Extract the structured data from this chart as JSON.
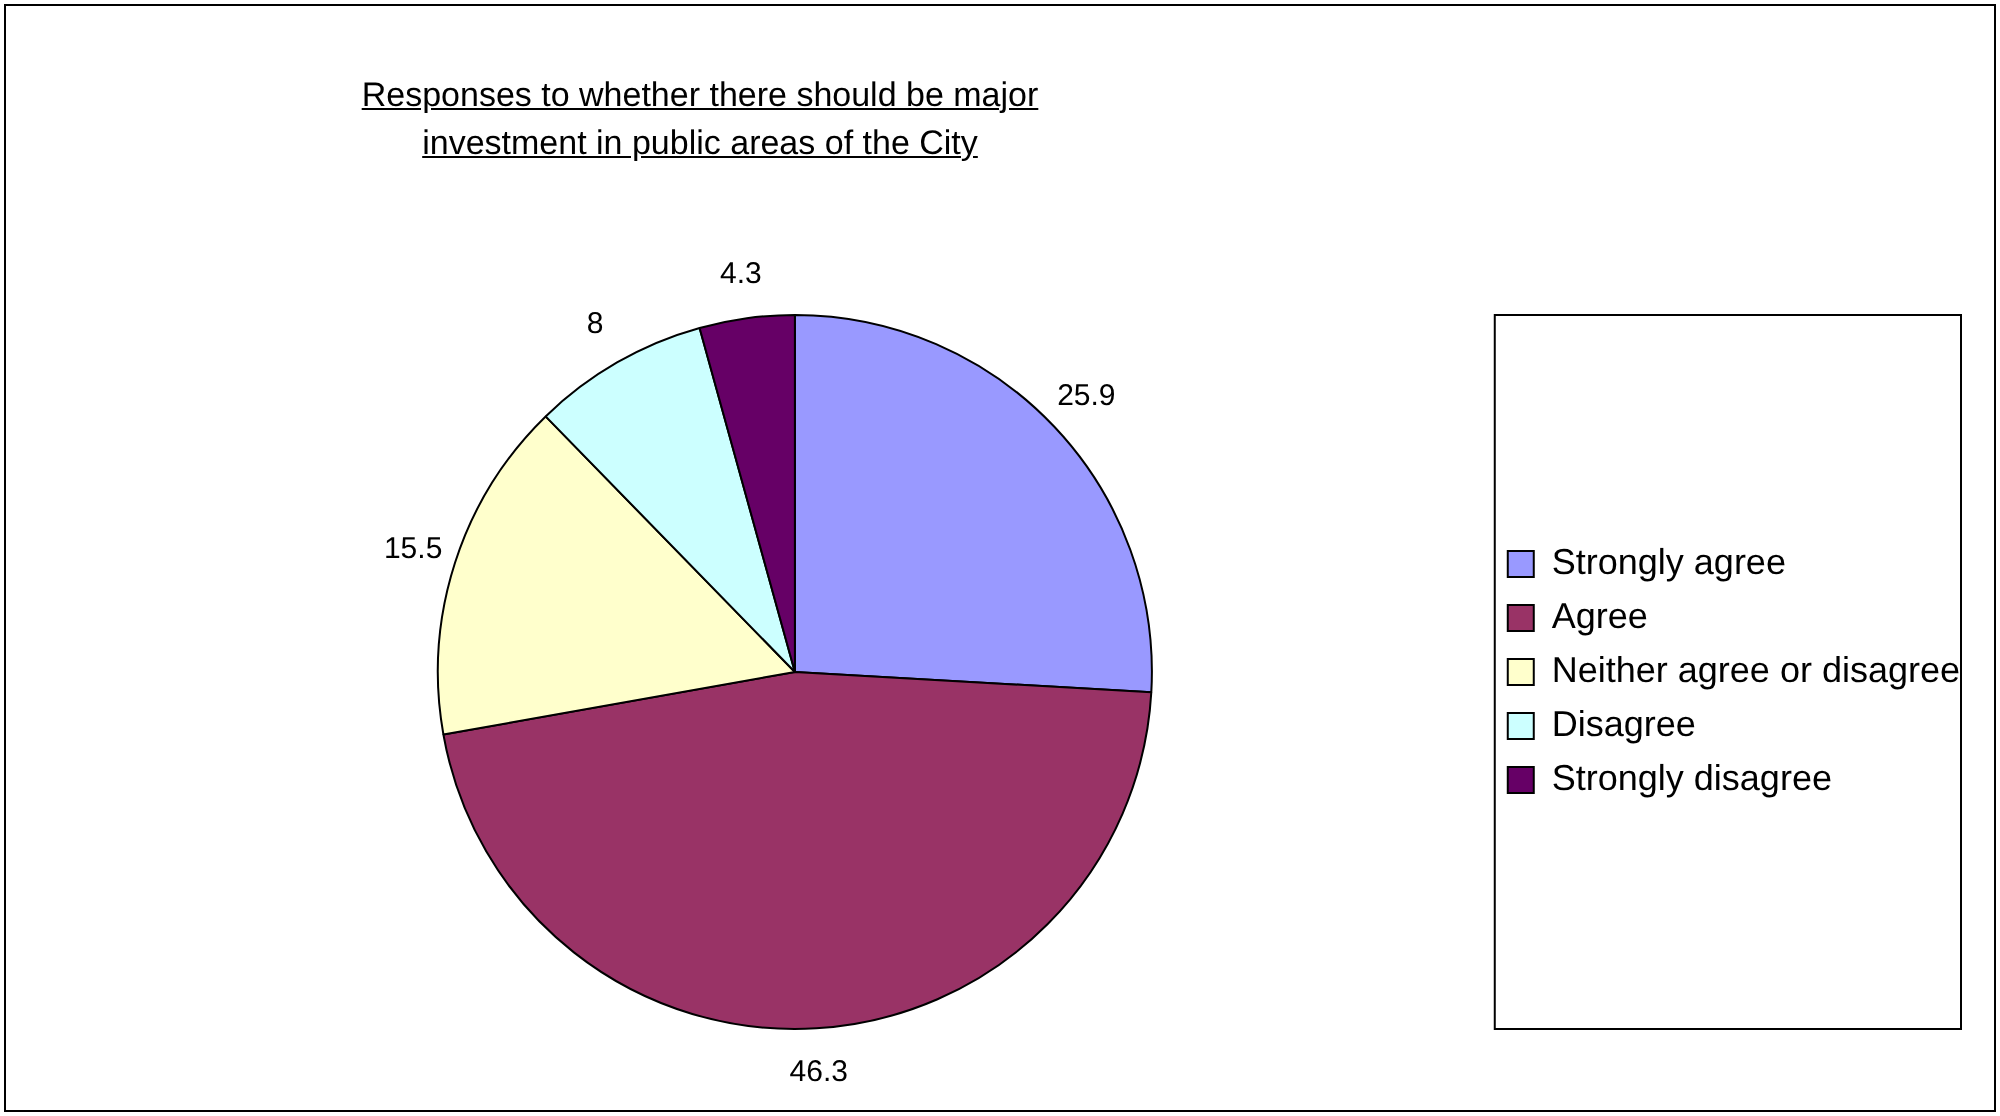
{
  "chart_data": {
    "type": "pie",
    "title": "Responses to whether there should be major investment in public areas of the City",
    "categories": [
      "Strongly agree",
      "Agree",
      "Neither agree or disagree",
      "Disagree",
      "Strongly disagree"
    ],
    "values": [
      25.9,
      46.3,
      15.5,
      8,
      4.3
    ],
    "colors": [
      "#9999ff",
      "#993366",
      "#ffffcc",
      "#ccffff",
      "#660066"
    ],
    "data_labels": true,
    "legend": "right"
  }
}
